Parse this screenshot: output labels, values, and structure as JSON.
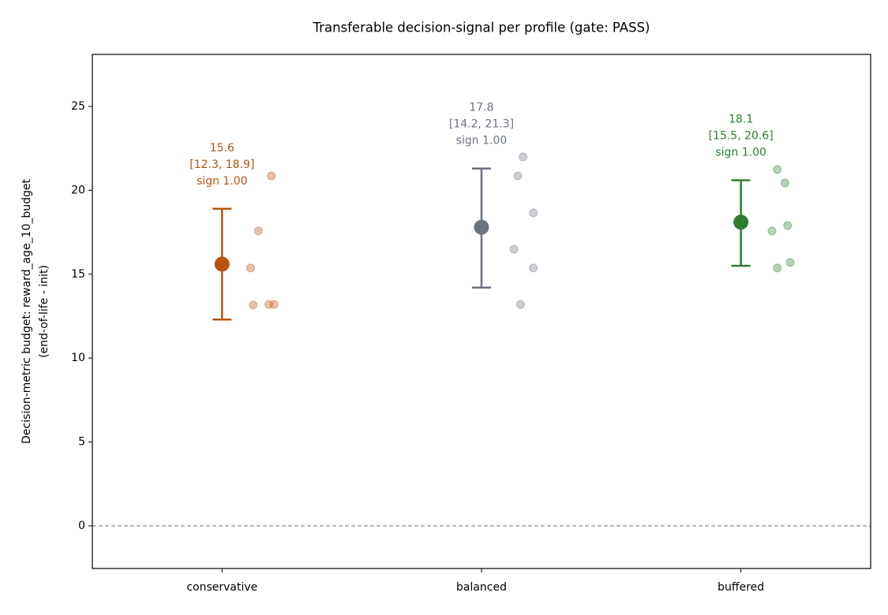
{
  "chart_data": {
    "type": "interval",
    "title": "Transferable decision-signal per profile (gate: PASS)",
    "ylabel": [
      "Decision-metric budget: reward_age_10_budget",
      "(end-of-life - init)"
    ],
    "categories": [
      "conservative",
      "balanced",
      "buffered"
    ],
    "colors": [
      "#b5540f",
      "#6b7280",
      "#2e7d32"
    ],
    "means": [
      15.6,
      17.8,
      18.1
    ],
    "ci_low": [
      12.3,
      14.2,
      15.5
    ],
    "ci_high": [
      18.9,
      21.3,
      20.6
    ],
    "ci_labels": [
      "[12.3, 18.9]",
      "[14.2, 21.3]",
      "[15.5, 20.6]"
    ],
    "signs": [
      1.0,
      1.0,
      1.0
    ],
    "sign_labels": [
      "sign 1.00",
      "sign 1.00",
      "sign 1.00"
    ],
    "points": [
      {
        "x": [
          0.19,
          0.14,
          0.11,
          0.12,
          0.18,
          0.2
        ],
        "y": [
          20.86,
          17.58,
          15.37,
          13.16,
          13.2,
          13.2
        ]
      },
      {
        "x": [
          1.16,
          1.14,
          1.2,
          1.125,
          1.2,
          1.15
        ],
        "y": [
          21.99,
          20.86,
          18.66,
          16.49,
          15.37,
          13.2
        ]
      },
      {
        "x": [
          2.14,
          2.17,
          2.18,
          2.12,
          2.19,
          2.14
        ],
        "y": [
          21.24,
          20.44,
          17.9,
          17.58,
          15.7,
          15.37
        ]
      }
    ],
    "reference_line": 0,
    "xlim": [
      -0.5,
      2.5
    ],
    "ylim": [
      -2.54,
      28.1
    ],
    "yticks": [
      0,
      5,
      10,
      15,
      20,
      25
    ]
  }
}
